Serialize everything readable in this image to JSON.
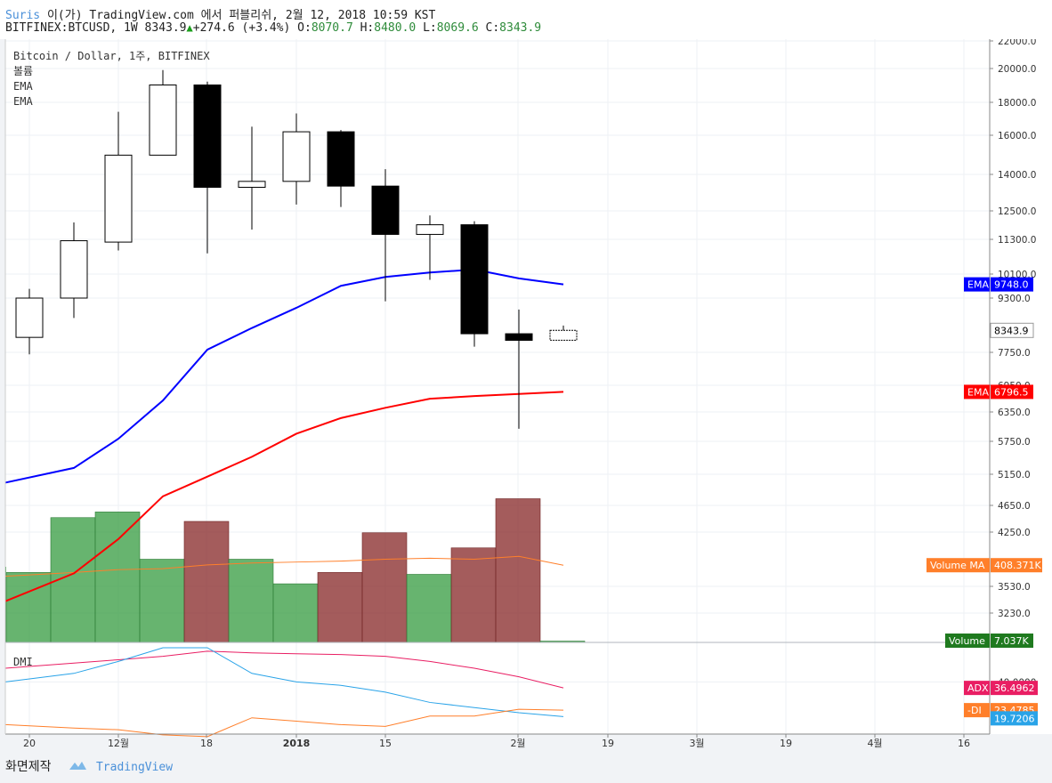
{
  "header": {
    "line1_author": "Suris",
    "line1_rest": " 이(가) TradingView.com 에서 퍼블리쉬, 2월 12, 2018 10:59 KST",
    "symbol": "BITFINEX:BTCUSD, 1W",
    "last": "8343.9",
    "change": "+274.6 (+3.4%)",
    "o_label": "O:",
    "o": "8070.7",
    "h_label": "H:",
    "h": "8480.0",
    "l_label": "L:",
    "l": "8069.6",
    "c_label": "C:",
    "c": "8343.9"
  },
  "legend": {
    "title": "Bitcoin / Dollar, 1주, BITFINEX",
    "items": [
      "볼륨",
      "EMA",
      "EMA"
    ]
  },
  "dmi_label": "DMI",
  "footer": {
    "caption": "화면제작",
    "brand": "TradingView"
  },
  "colors": {
    "ema_fast": "#0000ff",
    "ema_slow": "#ff0000",
    "vol_up": "#3c9f46",
    "vol_down": "#8b2e2e",
    "vol_ma": "#ff7f2a",
    "adx": "#e91e63",
    "di_plus": "#29a3e8",
    "di_minus": "#ff7f2a"
  },
  "chart_data": {
    "type": "candlestick",
    "scale": "log",
    "ylim": [
      2900,
      22500
    ],
    "price_ticks": [
      "22000.0",
      "20000.0",
      "18000.0",
      "16000.0",
      "14000.0",
      "12500.0",
      "11300.0",
      "10100.0",
      "9300.0",
      "7750.0",
      "6950.0",
      "6350.0",
      "5750.0",
      "5150.0",
      "4650.0",
      "4250.0",
      "3530.0",
      "3230.0"
    ],
    "x_ticks": [
      "20",
      "12월",
      "18",
      "2018",
      "15",
      "2월",
      "19",
      "3월",
      "19",
      "4월",
      "16"
    ],
    "candles": [
      {
        "o": 8150,
        "h": 9600,
        "l": 7700,
        "c": 9300
      },
      {
        "o": 9300,
        "h": 12000,
        "l": 8700,
        "c": 11250
      },
      {
        "o": 11200,
        "h": 17400,
        "l": 10900,
        "c": 14950
      },
      {
        "o": 14950,
        "h": 19900,
        "l": 14950,
        "c": 19000
      },
      {
        "o": 19000,
        "h": 19200,
        "l": 10800,
        "c": 13450
      },
      {
        "o": 13450,
        "h": 16500,
        "l": 11700,
        "c": 13700
      },
      {
        "o": 13700,
        "h": 17300,
        "l": 12750,
        "c": 16200
      },
      {
        "o": 16200,
        "h": 16300,
        "l": 12650,
        "c": 13500
      },
      {
        "o": 13500,
        "h": 14250,
        "l": 9200,
        "c": 11500
      },
      {
        "o": 11500,
        "h": 12300,
        "l": 9900,
        "c": 11900
      },
      {
        "o": 11900,
        "h": 12050,
        "l": 7900,
        "c": 8250
      },
      {
        "o": 8250,
        "h": 8950,
        "l": 6000,
        "c": 8070
      },
      {
        "o": 8070.7,
        "h": 8480.0,
        "l": 8069.6,
        "c": 8343.9
      }
    ],
    "ema_fast": {
      "name": "EMA",
      "last": "9748.0",
      "values": [
        5010,
        5260,
        5800,
        6600,
        7820,
        8410,
        9000,
        9700,
        10000,
        10150,
        10250,
        9950,
        9748
      ]
    },
    "ema_slow": {
      "name": "EMA",
      "last": "6796.5",
      "values": [
        3360,
        3690,
        4150,
        4790,
        5110,
        5460,
        5900,
        6220,
        6440,
        6640,
        6700,
        6750,
        6796.5
      ]
    },
    "volume": {
      "name": "Volume",
      "last": "7.037K",
      "ma_name": "Volume MA",
      "ma_last": "408.371K",
      "bars": [
        {
          "v": 370,
          "dir": "up"
        },
        {
          "v": 660,
          "dir": "up"
        },
        {
          "v": 690,
          "dir": "up"
        },
        {
          "v": 440,
          "dir": "up"
        },
        {
          "v": 640,
          "dir": "down"
        },
        {
          "v": 440,
          "dir": "up"
        },
        {
          "v": 310,
          "dir": "up"
        },
        {
          "v": 370,
          "dir": "down"
        },
        {
          "v": 580,
          "dir": "down"
        },
        {
          "v": 360,
          "dir": "up"
        },
        {
          "v": 500,
          "dir": "down"
        },
        {
          "v": 760,
          "dir": "down"
        },
        {
          "v": 7.037,
          "dir": "up"
        }
      ],
      "ma": [
        350,
        370,
        385,
        390,
        410,
        420,
        425,
        430,
        440,
        445,
        440,
        455,
        408.371
      ],
      "ymax": 800
    },
    "dmi": {
      "ylim": [
        10,
        60
      ],
      "adx": {
        "name": "ADX",
        "last": "36.4962",
        "values": [
          48,
          51,
          53,
          55,
          58,
          57,
          56.5,
          56,
          55,
          52,
          48,
          43,
          36.4962
        ]
      },
      "di_plus": {
        "name": "+DI",
        "last": "19.7206",
        "values": [
          40,
          45,
          52,
          60,
          60,
          45,
          40,
          38,
          34,
          28,
          25,
          22,
          19.7206
        ]
      },
      "di_minus": {
        "name": "-DI",
        "last": "23.4785",
        "values": [
          15,
          13,
          12,
          9,
          8,
          19,
          17,
          15,
          14,
          20,
          20,
          24,
          23.4785
        ]
      },
      "ticks": [
        "40.0000"
      ]
    }
  }
}
